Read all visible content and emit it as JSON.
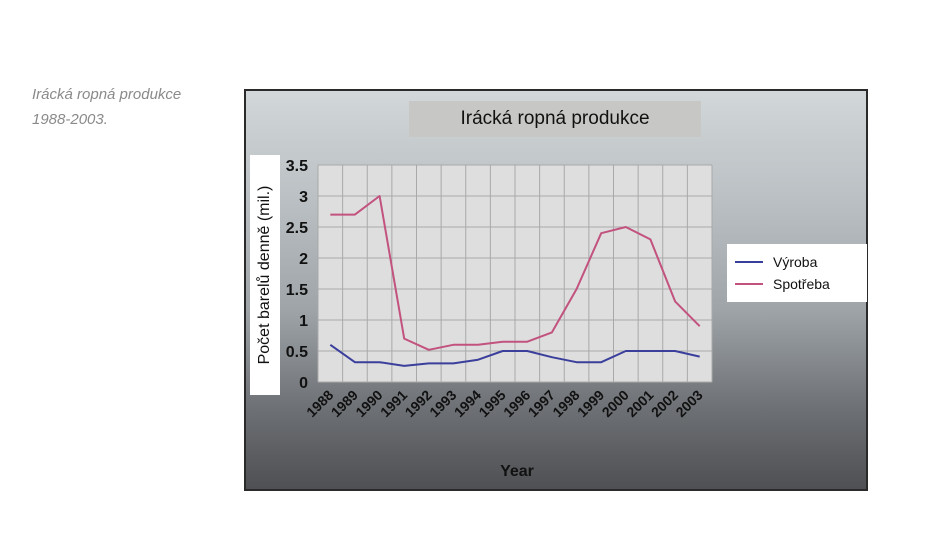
{
  "caption": {
    "line1": "Irácká ropná produkce",
    "line2": "1988-2003."
  },
  "colors": {
    "vyroba": "#3b3f9c",
    "spotreba": "#c2527e",
    "grid": "#a9a9a9",
    "plot_bg": "#dedede"
  },
  "chart_data": {
    "type": "line",
    "title": "Irácká ropná produkce",
    "xlabel": "Year",
    "ylabel": "Počet barelů denně (mil.)",
    "categories": [
      "1988",
      "1989",
      "1990",
      "1991",
      "1992",
      "1993",
      "1994",
      "1995",
      "1996",
      "1997",
      "1998",
      "1999",
      "2000",
      "2001",
      "2002",
      "2003"
    ],
    "series": [
      {
        "name": "Výroba",
        "values": [
          0.6,
          0.32,
          0.32,
          0.26,
          0.3,
          0.3,
          0.36,
          0.5,
          0.5,
          0.4,
          0.32,
          0.32,
          0.5,
          0.5,
          0.5,
          0.41
        ]
      },
      {
        "name": "Spotřeba",
        "values": [
          2.7,
          2.7,
          3.0,
          0.7,
          0.52,
          0.6,
          0.6,
          0.65,
          0.65,
          0.8,
          1.5,
          2.4,
          2.5,
          2.3,
          1.3,
          0.9
        ]
      }
    ],
    "ylim": [
      0,
      3.5
    ],
    "yticks": [
      "0",
      "0.5",
      "1",
      "1.5",
      "2",
      "2.5",
      "3",
      "3.5"
    ],
    "grid": true,
    "legend_position": "right"
  }
}
